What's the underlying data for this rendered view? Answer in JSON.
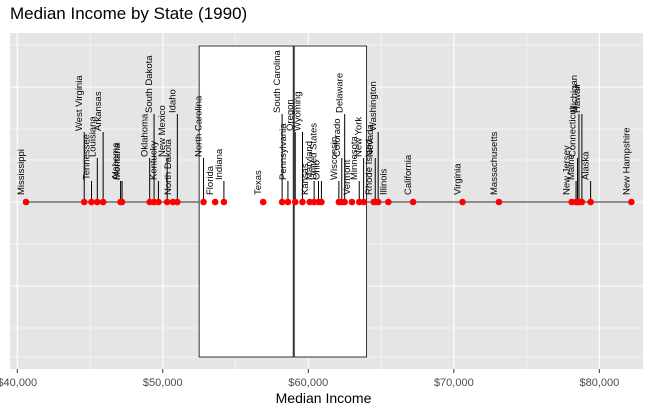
{
  "chart_data": {
    "type": "scatter",
    "title": "Median Income by State (1990)",
    "xlabel": "Median Income",
    "ylabel": "",
    "xlim": [
      39500,
      83000
    ],
    "xticks": [
      40000,
      50000,
      60000,
      70000,
      80000
    ],
    "xtick_labels": [
      "$40,000",
      "$50,000",
      "$60,000",
      "$70,000",
      "$80,000"
    ],
    "grid": true,
    "point_color": "#ff0000",
    "panel_color": "#e5e5e5",
    "boxplot": {
      "q1": 52500,
      "median": 59000,
      "q3": 64000,
      "whisker_low": 40600,
      "whisker_high": 82200
    },
    "points": [
      {
        "state": "Mississippi",
        "value": 40600,
        "label_level": 1
      },
      {
        "state": "West Virginia",
        "value": 44600,
        "label_level": 4
      },
      {
        "state": "Tennessee",
        "value": 45100,
        "label_level": 2
      },
      {
        "state": "Louisiana",
        "value": 45500,
        "label_level": 3
      },
      {
        "state": "Arkansas",
        "value": 45900,
        "label_level": 4
      },
      {
        "state": "Alabama",
        "value": 47100,
        "label_level": 2
      },
      {
        "state": "Montana",
        "value": 47200,
        "label_level": 2
      },
      {
        "state": "Oklahoma",
        "value": 49100,
        "label_level": 3
      },
      {
        "state": "South Dakota",
        "value": 49400,
        "label_level": 5
      },
      {
        "state": "Kentucky",
        "value": 49700,
        "label_level": 2
      },
      {
        "state": "New Mexico",
        "value": 50300,
        "label_level": 3
      },
      {
        "state": "North Dakota",
        "value": 50700,
        "label_level": 1
      },
      {
        "state": "Idaho",
        "value": 51000,
        "label_level": 5
      },
      {
        "state": "North Carolina",
        "value": 52800,
        "label_level": 3
      },
      {
        "state": "Florida",
        "value": 53600,
        "label_level": 1
      },
      {
        "state": "Indiana",
        "value": 54200,
        "label_level": 2
      },
      {
        "state": "Texas",
        "value": 56900,
        "label_level": 1
      },
      {
        "state": "South Carolina",
        "value": 58200,
        "label_level": 5
      },
      {
        "state": "Pennsylvania",
        "value": 58600,
        "label_level": 2
      },
      {
        "state": "Oregon",
        "value": 59100,
        "label_level": 4
      },
      {
        "state": "Wyoming",
        "value": 59600,
        "label_level": 4
      },
      {
        "state": "Kansas",
        "value": 60100,
        "label_level": 1
      },
      {
        "state": "Maryland",
        "value": 60400,
        "label_level": 2
      },
      {
        "state": "United States",
        "value": 60700,
        "label_level": 2
      },
      {
        "state": "Ohio",
        "value": 60900,
        "label_level": 2
      },
      {
        "state": "Wisconsin",
        "value": 62100,
        "label_level": 2
      },
      {
        "state": "Colorado",
        "value": 62300,
        "label_level": 3
      },
      {
        "state": "Delaware",
        "value": 62500,
        "label_level": 5
      },
      {
        "state": "Vermont",
        "value": 63000,
        "label_level": 1
      },
      {
        "state": "Minnesota",
        "value": 63500,
        "label_level": 2
      },
      {
        "state": "New York",
        "value": 63800,
        "label_level": 3
      },
      {
        "state": "Rhode Island",
        "value": 64500,
        "label_level": 1
      },
      {
        "state": "Nevada",
        "value": 64600,
        "label_level": 3
      },
      {
        "state": "Washington",
        "value": 64800,
        "label_level": 4
      },
      {
        "state": "Illinois",
        "value": 65500,
        "label_level": 1
      },
      {
        "state": "California",
        "value": 67200,
        "label_level": 1
      },
      {
        "state": "Virginia",
        "value": 70600,
        "label_level": 1
      },
      {
        "state": "Massachusetts",
        "value": 73100,
        "label_level": 1
      },
      {
        "state": "New Jersey",
        "value": 78100,
        "label_level": 1
      },
      {
        "state": "Maine",
        "value": 78400,
        "label_level": 2
      },
      {
        "state": "Michigan",
        "value": 78600,
        "label_level": 5
      },
      {
        "state": "Connecticut",
        "value": 78500,
        "label_level": 3
      },
      {
        "state": "Hawaii",
        "value": 78800,
        "label_level": 5
      },
      {
        "state": "Alaska",
        "value": 79400,
        "label_level": 2
      },
      {
        "state": "New Hampshire",
        "value": 82200,
        "label_level": 1
      }
    ]
  }
}
